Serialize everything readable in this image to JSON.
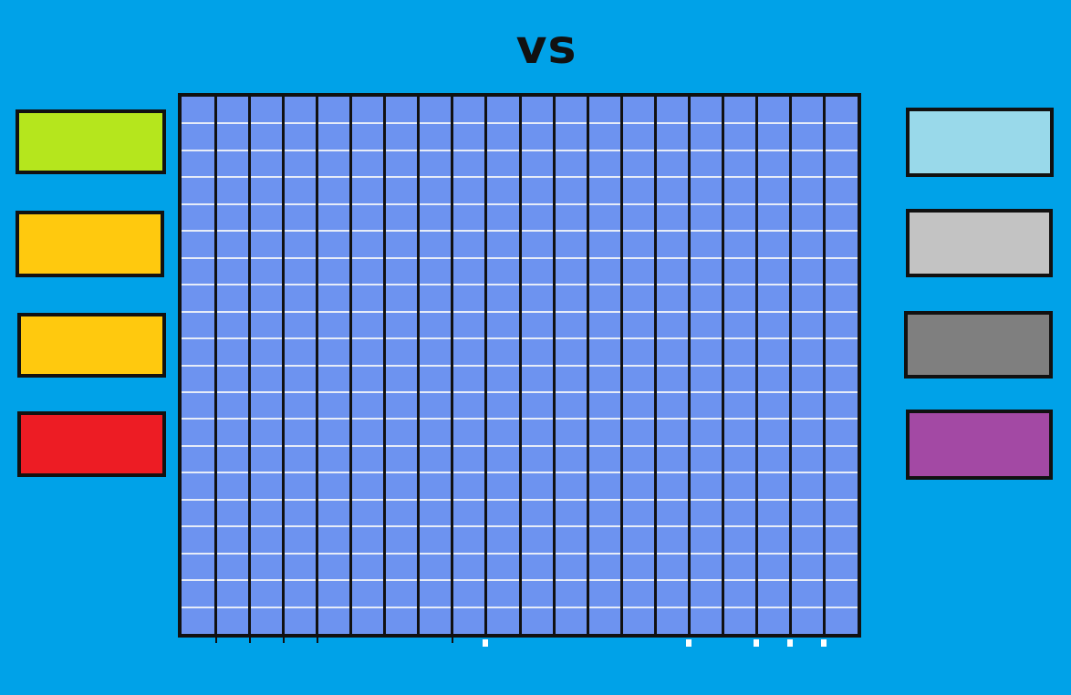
{
  "header": {
    "title": "vs"
  },
  "board": {
    "columns": 20,
    "rows": 20,
    "cell_color": "#6d93f0",
    "grid_line_color": "#e6ecf8",
    "column_divider_color": "#111111"
  },
  "left_team": {
    "colors": [
      "#b5e61d",
      "#ffc90e",
      "#ffc90e",
      "#ed1c24"
    ]
  },
  "right_team": {
    "colors": [
      "#99d9ea",
      "#c3c3c3",
      "#7f7f7f",
      "#a349a4"
    ]
  },
  "background_color": "#00a2e8"
}
